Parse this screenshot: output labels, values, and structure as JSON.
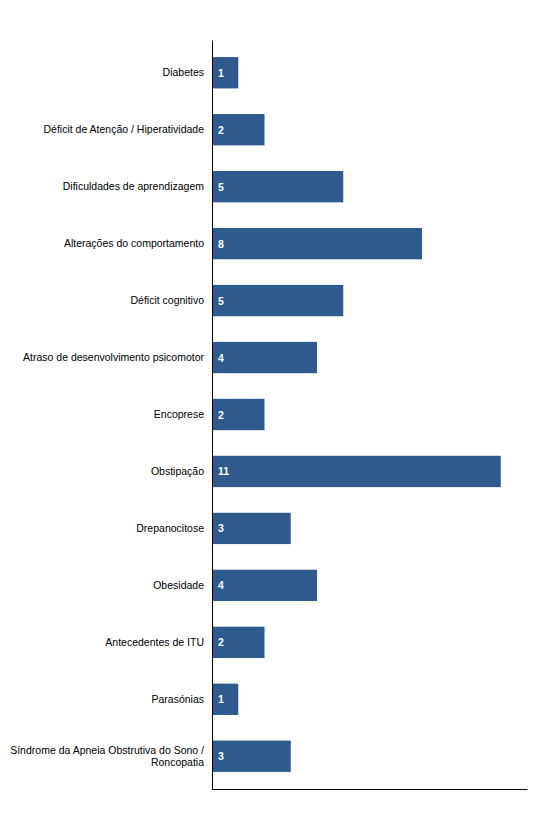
{
  "chart_data": {
    "type": "bar",
    "orientation": "horizontal",
    "categories": [
      "Diabetes",
      "Déficit de Atenção / Hiperatividade",
      "Dificuldades de aprendizagem",
      "Alterações do comportamento",
      "Déficit cognitivo",
      "Atraso de desenvolvimento psicomotor",
      "Encoprese",
      "Obstipação",
      "Drepanocitose",
      "Obesidade",
      "Antecedentes de ITU",
      "Parasónias",
      "Síndrome da Apneia Obstrutiva do Sono /\nRoncopatia"
    ],
    "values": [
      1,
      2,
      5,
      8,
      5,
      4,
      2,
      11,
      3,
      4,
      2,
      1,
      3
    ],
    "color": "#2E5A8E",
    "xlim": [
      0,
      12
    ],
    "data_labels": true,
    "tick_labels": "y"
  }
}
